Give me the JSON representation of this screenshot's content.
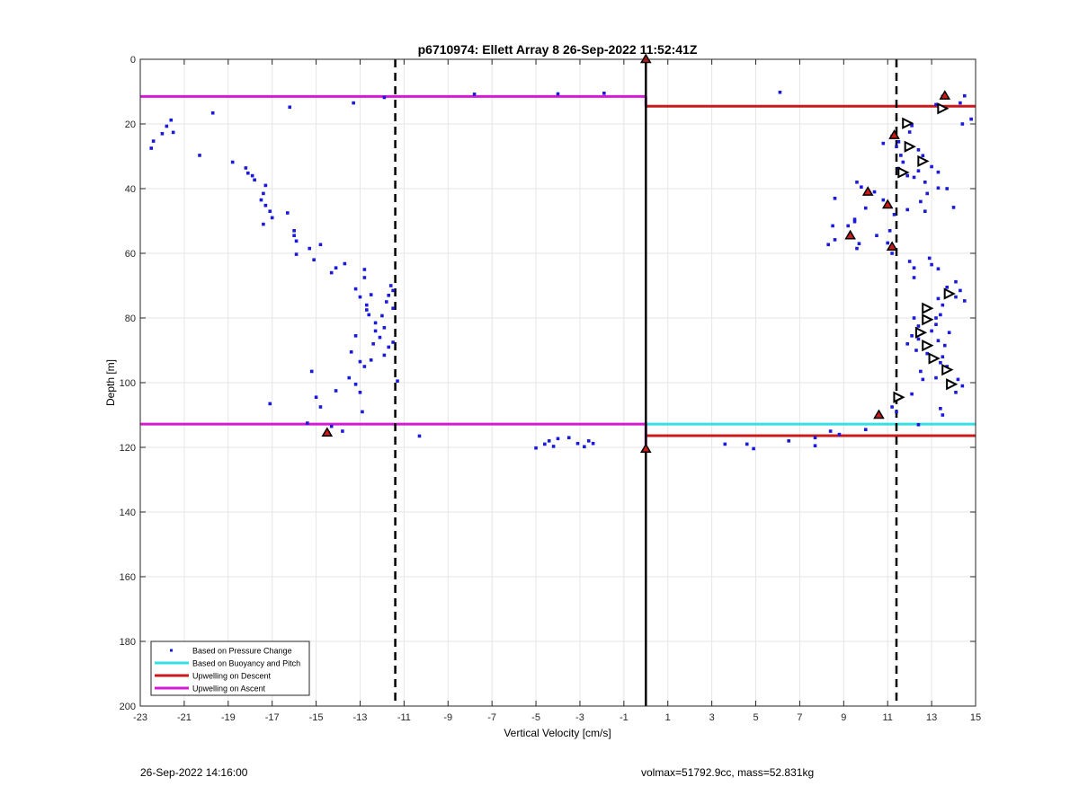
{
  "chart_data": {
    "type": "scatter",
    "title": "p6710974: Ellett Array 8 26-Sep-2022 11:52:41Z",
    "xlabel": "Vertical Velocity [cm/s]",
    "ylabel": "Depth [m]",
    "xlim": [
      -23,
      15
    ],
    "ylim": [
      0,
      200
    ],
    "y_reversed": true,
    "grid": true,
    "legend_position": "bottom-left",
    "x_ticks": [
      -23,
      -21,
      -19,
      -17,
      -15,
      -13,
      -11,
      -9,
      -7,
      -5,
      -3,
      -1,
      1,
      3,
      5,
      7,
      9,
      11,
      13,
      15
    ],
    "y_ticks": [
      0,
      20,
      40,
      60,
      80,
      100,
      120,
      140,
      160,
      180,
      200
    ],
    "colors": {
      "pressure": "#1a1adc",
      "buoyancy": "#33e0e6",
      "descent": "#cc1a1a",
      "ascent": "#d41ad4"
    },
    "legend": [
      {
        "key": "pressure",
        "label": "Based on Pressure Change"
      },
      {
        "key": "buoyancy",
        "label": "Based on Buoyancy and Pitch"
      },
      {
        "key": "descent",
        "label": "Upwelling on Descent"
      },
      {
        "key": "ascent",
        "label": "Upwelling on Ascent"
      }
    ],
    "series": [
      {
        "name": "Based on Pressure Change",
        "points": [
          [
            -22.5,
            27.5
          ],
          [
            -22.4,
            25.3
          ],
          [
            -22.0,
            23.0
          ],
          [
            -21.8,
            20.7
          ],
          [
            -21.6,
            18.8
          ],
          [
            -21.5,
            22.6
          ],
          [
            -20.3,
            29.7
          ],
          [
            -19.7,
            16.6
          ],
          [
            -18.8,
            31.8
          ],
          [
            -18.2,
            33.6
          ],
          [
            -18.1,
            35.2
          ],
          [
            -17.9,
            36.0
          ],
          [
            -17.8,
            37.3
          ],
          [
            -17.5,
            43.5
          ],
          [
            -17.4,
            41.5
          ],
          [
            -17.3,
            39.0
          ],
          [
            -17.3,
            45.2
          ],
          [
            -17.1,
            47.0
          ],
          [
            -17.0,
            49.0
          ],
          [
            -17.4,
            51.0
          ],
          [
            -16.3,
            47.5
          ],
          [
            -16.2,
            14.8
          ],
          [
            -16.0,
            53.0
          ],
          [
            -16.0,
            54.5
          ],
          [
            -15.9,
            56.2
          ],
          [
            -15.9,
            60.3
          ],
          [
            -15.3,
            58.5
          ],
          [
            -15.1,
            62.0
          ],
          [
            -14.8,
            57.3
          ],
          [
            -14.3,
            66.0
          ],
          [
            -14.1,
            64.5
          ],
          [
            -13.7,
            63.2
          ],
          [
            -13.2,
            71.0
          ],
          [
            -13.0,
            73.5
          ],
          [
            -12.8,
            65.0
          ],
          [
            -12.8,
            67.5
          ],
          [
            -12.7,
            76.0
          ],
          [
            -12.7,
            77.5
          ],
          [
            -12.6,
            79.0
          ],
          [
            -12.5,
            72.8
          ],
          [
            -12.3,
            81.5
          ],
          [
            -12.3,
            84.0
          ],
          [
            -12.1,
            86.0
          ],
          [
            -12.0,
            79.3
          ],
          [
            -11.9,
            83.0
          ],
          [
            -11.8,
            75.0
          ],
          [
            -11.7,
            73.0
          ],
          [
            -11.6,
            70.0
          ],
          [
            -11.5,
            71.5
          ],
          [
            -11.5,
            77.0
          ],
          [
            -11.5,
            87.5
          ],
          [
            -11.7,
            89.0
          ],
          [
            -12.4,
            88.0
          ],
          [
            -11.9,
            91.5
          ],
          [
            -13.2,
            85.5
          ],
          [
            -13.4,
            90.5
          ],
          [
            -13.0,
            93.5
          ],
          [
            -12.8,
            95.0
          ],
          [
            -12.5,
            93.0
          ],
          [
            -11.3,
            99.5
          ],
          [
            -13.2,
            100.5
          ],
          [
            -13.0,
            103.0
          ],
          [
            -12.9,
            109.0
          ],
          [
            -13.5,
            98.5
          ],
          [
            -14.1,
            102.5
          ],
          [
            -14.8,
            107.5
          ],
          [
            -15.0,
            104.5
          ],
          [
            -15.2,
            96.5
          ],
          [
            -15.4,
            112.5
          ],
          [
            -14.3,
            113.5
          ],
          [
            -13.8,
            115.0
          ],
          [
            -17.1,
            106.5
          ],
          [
            -13.3,
            13.5
          ],
          [
            -11.9,
            11.8
          ],
          [
            -10.3,
            116.5
          ],
          [
            -7.8,
            10.8
          ],
          [
            -4.0,
            10.7
          ],
          [
            -1.9,
            10.5
          ],
          [
            -5.0,
            120.2
          ],
          [
            -4.6,
            119.0
          ],
          [
            -4.4,
            118.0
          ],
          [
            -4.2,
            119.7
          ],
          [
            -4.0,
            117.3
          ],
          [
            -3.5,
            117.0
          ],
          [
            -3.1,
            118.8
          ],
          [
            -2.8,
            119.8
          ],
          [
            -2.6,
            118.0
          ],
          [
            -2.4,
            118.8
          ],
          [
            3.6,
            119.0
          ],
          [
            4.6,
            119.0
          ],
          [
            4.9,
            120.4
          ],
          [
            6.5,
            118.0
          ],
          [
            7.7,
            117.0
          ],
          [
            7.7,
            119.5
          ],
          [
            8.4,
            115.0
          ],
          [
            8.8,
            116.0
          ],
          [
            6.1,
            10.2
          ],
          [
            11.4,
            27.0
          ],
          [
            10.8,
            26.0
          ],
          [
            11.6,
            29.7
          ],
          [
            11.7,
            31.8
          ],
          [
            11.5,
            33.8
          ],
          [
            12.4,
            34.5
          ],
          [
            13.0,
            33.2
          ],
          [
            12.2,
            36.5
          ],
          [
            12.7,
            38.0
          ],
          [
            13.3,
            34.9
          ],
          [
            12.8,
            41.5
          ],
          [
            13.3,
            39.8
          ],
          [
            12.5,
            44.0
          ],
          [
            11.9,
            46.5
          ],
          [
            11.3,
            48.0
          ],
          [
            12.7,
            47.0
          ],
          [
            13.7,
            40.0
          ],
          [
            14.0,
            45.8
          ],
          [
            11.1,
            53.0
          ],
          [
            10.5,
            54.5
          ],
          [
            11.0,
            56.8
          ],
          [
            11.2,
            60.0
          ],
          [
            9.6,
            58.5
          ],
          [
            9.7,
            57.0
          ],
          [
            9.2,
            51.5
          ],
          [
            9.5,
            50.2
          ],
          [
            8.6,
            43.0
          ],
          [
            9.6,
            38.0
          ],
          [
            9.8,
            39.5
          ],
          [
            8.3,
            57.3
          ],
          [
            8.6,
            55.8
          ],
          [
            8.5,
            51.5
          ],
          [
            9.5,
            49.5
          ],
          [
            10.8,
            43.5
          ],
          [
            12.0,
            62.5
          ],
          [
            12.2,
            64.5
          ],
          [
            12.2,
            67.5
          ],
          [
            12.9,
            61.5
          ],
          [
            13.0,
            63.5
          ],
          [
            13.3,
            64.8
          ],
          [
            13.7,
            70.5
          ],
          [
            14.1,
            68.8
          ],
          [
            14.3,
            71.5
          ],
          [
            14.1,
            73.5
          ],
          [
            14.5,
            74.7
          ],
          [
            13.3,
            74.0
          ],
          [
            13.5,
            76.0
          ],
          [
            13.4,
            79.0
          ],
          [
            13.2,
            80.0
          ],
          [
            13.2,
            82.0
          ],
          [
            13.0,
            84.0
          ],
          [
            12.2,
            80.0
          ],
          [
            12.4,
            82.5
          ],
          [
            12.1,
            85.5
          ],
          [
            12.4,
            86.5
          ],
          [
            11.9,
            88.0
          ],
          [
            12.3,
            90.0
          ],
          [
            12.8,
            91.0
          ],
          [
            13.6,
            88.5
          ],
          [
            13.3,
            87.0
          ],
          [
            13.8,
            84.5
          ],
          [
            13.5,
            92.0
          ],
          [
            13.4,
            93.8
          ],
          [
            12.5,
            96.5
          ],
          [
            12.6,
            99.0
          ],
          [
            13.2,
            98.5
          ],
          [
            13.7,
            95.0
          ],
          [
            14.2,
            99.0
          ],
          [
            14.4,
            101.0
          ],
          [
            14.1,
            103.0
          ],
          [
            13.4,
            108.0
          ],
          [
            13.5,
            110.0
          ],
          [
            12.1,
            103.5
          ],
          [
            11.2,
            107.5
          ],
          [
            11.4,
            109.0
          ],
          [
            10.0,
            114.5
          ],
          [
            12.4,
            113.0
          ],
          [
            13.5,
            11.5
          ],
          [
            14.5,
            11.3
          ],
          [
            14.3,
            13.5
          ],
          [
            13.2,
            14.0
          ],
          [
            14.8,
            18.5
          ],
          [
            14.4,
            20.0
          ],
          [
            12.1,
            20.5
          ],
          [
            12.0,
            22.5
          ],
          [
            11.2,
            23.8
          ],
          [
            11.5,
            25.5
          ],
          [
            12.4,
            28.0
          ],
          [
            12.6,
            29.8
          ],
          [
            11.9,
            36.0
          ],
          [
            10.4,
            41.0
          ],
          [
            10.0,
            46.0
          ]
        ]
      },
      {
        "name": "Upwelling on Descent",
        "points": [
          [
            0.0,
            0.0
          ],
          [
            13.6,
            11.3
          ],
          [
            11.3,
            23.5
          ],
          [
            10.1,
            41.0
          ],
          [
            11.0,
            45.0
          ],
          [
            9.3,
            54.5
          ],
          [
            11.2,
            58.0
          ],
          [
            10.6,
            110.0
          ],
          [
            -14.5,
            115.5
          ],
          [
            0.0,
            120.5
          ]
        ]
      },
      {
        "name": "Based on Buoyancy and Pitch",
        "points": [
          [
            13.5,
            15.2
          ],
          [
            11.9,
            19.8
          ],
          [
            12.0,
            27.0
          ],
          [
            12.6,
            31.5
          ],
          [
            11.7,
            35.0
          ],
          [
            13.8,
            72.5
          ],
          [
            12.8,
            77.0
          ],
          [
            12.8,
            80.5
          ],
          [
            12.5,
            84.5
          ],
          [
            12.8,
            88.5
          ],
          [
            13.1,
            92.5
          ],
          [
            13.7,
            96.0
          ],
          [
            13.9,
            100.5
          ],
          [
            11.5,
            104.5
          ]
        ]
      }
    ],
    "reference_lines": [
      {
        "orientation": "vertical",
        "x": -11.4,
        "style": "dashed",
        "color": "#000000"
      },
      {
        "orientation": "vertical",
        "x": 11.4,
        "style": "dashed",
        "color": "#000000"
      },
      {
        "orientation": "vertical",
        "x": 0.0,
        "style": "solid",
        "color": "#000000"
      }
    ],
    "horizontal_lines": [
      {
        "series": "Upwelling on Ascent",
        "key": "ascent",
        "y": 11.5,
        "x_from": -23,
        "x_to": 0
      },
      {
        "series": "Upwelling on Descent",
        "key": "descent",
        "y": 14.5,
        "x_from": 0,
        "x_to": 15
      },
      {
        "series": "Upwelling on Ascent",
        "key": "ascent",
        "y": 112.8,
        "x_from": -23,
        "x_to": 0
      },
      {
        "series": "Based on Buoyancy and Pitch",
        "key": "buoyancy",
        "y": 112.8,
        "x_from": 0,
        "x_to": 15
      },
      {
        "series": "Upwelling on Descent",
        "key": "descent",
        "y": 116.4,
        "x_from": 0,
        "x_to": 15
      }
    ]
  },
  "footer": {
    "timestamp": "26-Sep-2022 14:16:00",
    "info": "volmax=51792.9cc, mass=52.831kg"
  }
}
